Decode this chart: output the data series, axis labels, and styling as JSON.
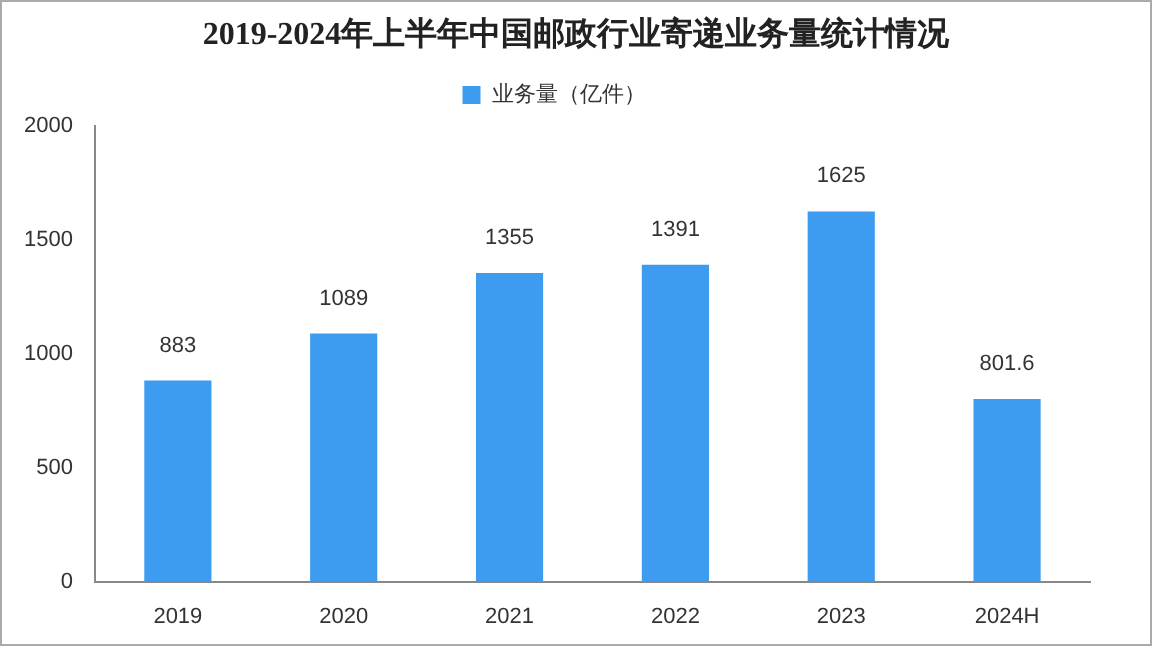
{
  "chart_data": {
    "type": "bar",
    "title": "2019-2024年上半年中国邮政行业寄递业务量统计情况",
    "categories": [
      "2019",
      "2020",
      "2021",
      "2022",
      "2023",
      "2024H"
    ],
    "series": [
      {
        "name": "业务量（亿件）",
        "color": "#3d9bf0",
        "values": [
          883,
          1089,
          1355,
          1391,
          1625,
          801.6
        ]
      }
    ],
    "ylim": [
      0,
      2000
    ],
    "yticks": [
      0,
      500,
      1000,
      1500,
      2000
    ],
    "grid": false,
    "legend": "top",
    "data_labels": true
  }
}
